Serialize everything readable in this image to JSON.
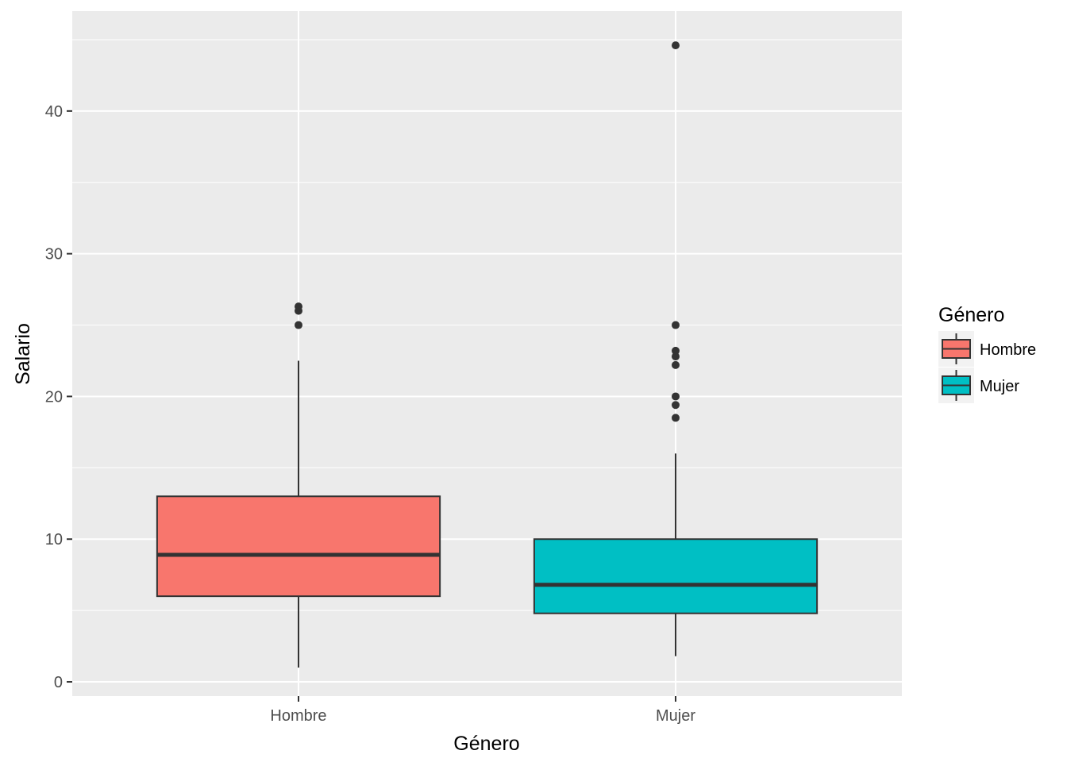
{
  "chart_data": {
    "type": "boxplot",
    "xlabel": "Género",
    "ylabel": "Salario",
    "categories": [
      "Hombre",
      "Mujer"
    ],
    "ylim": [
      -1,
      47
    ],
    "yticks": [
      0,
      10,
      20,
      30,
      40
    ],
    "grid": true,
    "legend": {
      "title": "Género",
      "position": "right",
      "entries": [
        "Hombre",
        "Mujer"
      ]
    },
    "series": [
      {
        "name": "Hombre",
        "color": "#F8766D",
        "whisker_low": 1.0,
        "q1": 6.0,
        "median": 8.9,
        "q3": 13.0,
        "whisker_high": 22.5,
        "outliers": [
          25.0,
          26.0,
          26.3
        ]
      },
      {
        "name": "Mujer",
        "color": "#00BFC4",
        "whisker_low": 1.8,
        "q1": 4.8,
        "median": 6.8,
        "q3": 10.0,
        "whisker_high": 16.0,
        "outliers": [
          18.5,
          19.4,
          20.0,
          22.2,
          22.8,
          23.2,
          25.0,
          44.6
        ]
      }
    ]
  }
}
